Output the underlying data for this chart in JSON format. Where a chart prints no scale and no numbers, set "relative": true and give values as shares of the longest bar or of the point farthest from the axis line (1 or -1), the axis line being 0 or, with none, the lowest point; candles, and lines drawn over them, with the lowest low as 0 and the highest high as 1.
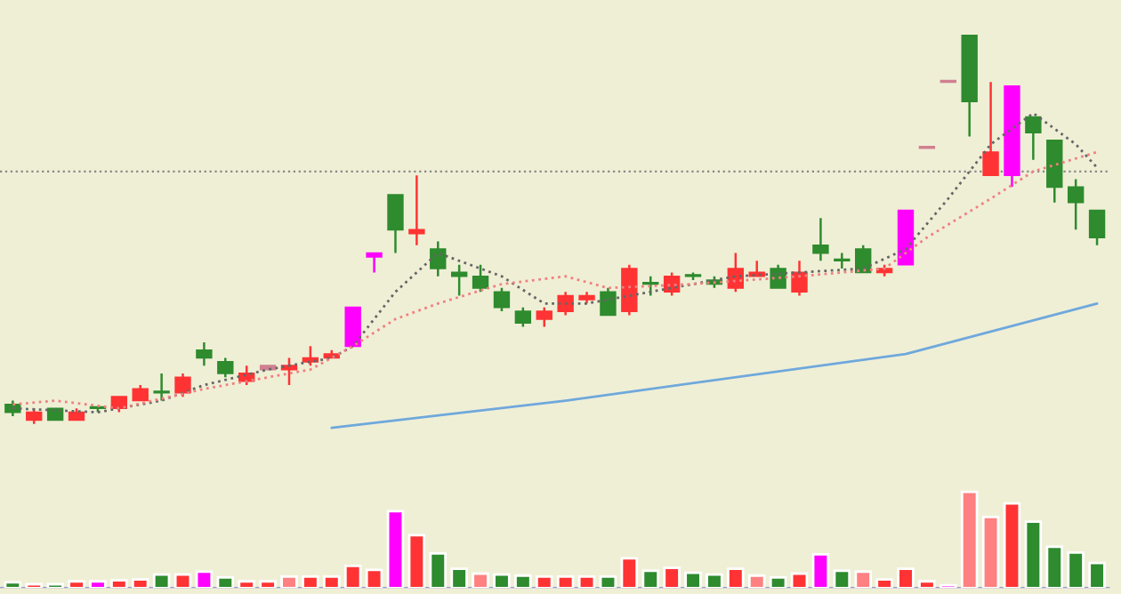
{
  "chart_data": [
    {
      "type": "candlestick",
      "relative": true,
      "categories": [
        null,
        null,
        null,
        null,
        null,
        null,
        null,
        null,
        null,
        null,
        null,
        null,
        null,
        null,
        null,
        null,
        null,
        null,
        null,
        null,
        null,
        null,
        null,
        null,
        null,
        null,
        null,
        null,
        null,
        null,
        null,
        null,
        null,
        null,
        null,
        null,
        null,
        null,
        null,
        null,
        null,
        null,
        null,
        null,
        null,
        null,
        null,
        null,
        null,
        null,
        null,
        null
      ],
      "ohlc": [
        [
          0.05,
          0.06,
          0.02,
          0.03
        ],
        [
          0.01,
          0.04,
          0,
          0.03
        ],
        [
          0.04,
          0.04,
          0.01,
          0.01
        ],
        [
          0.01,
          0.04,
          0.01,
          0.03
        ],
        [
          0.04,
          0.04,
          0.03,
          0.04
        ],
        [
          0.04,
          0.07,
          0.03,
          0.07
        ],
        [
          0.06,
          0.1,
          0.06,
          0.09
        ],
        [
          0.08,
          0.13,
          0.06,
          0.08
        ],
        [
          0.08,
          0.13,
          0.07,
          0.12
        ],
        [
          0.19,
          0.21,
          0.15,
          0.17
        ],
        [
          0.16,
          0.17,
          0.12,
          0.13
        ],
        [
          0.11,
          0.15,
          0.1,
          0.13
        ],
        [
          0.14,
          0.15,
          0.14,
          0.15
        ],
        [
          0.14,
          0.17,
          0.1,
          0.15
        ],
        [
          0.16,
          0.2,
          0.15,
          0.17
        ],
        [
          0.17,
          0.19,
          0.17,
          0.18
        ],
        [
          0.2,
          0.3,
          0.2,
          0.3
        ],
        [
          0.43,
          0.44,
          0.39,
          0.44
        ],
        [
          0.59,
          0.59,
          0.44,
          0.5
        ],
        [
          0.49,
          0.64,
          0.46,
          0.5
        ],
        [
          0.45,
          0.47,
          0.38,
          0.4
        ],
        [
          0.39,
          0.41,
          0.33,
          0.38
        ],
        [
          0.38,
          0.41,
          0.34,
          0.35
        ],
        [
          0.34,
          0.35,
          0.29,
          0.3
        ],
        [
          0.29,
          0.3,
          0.25,
          0.26
        ],
        [
          0.27,
          0.3,
          0.25,
          0.29
        ],
        [
          0.29,
          0.34,
          0.28,
          0.33
        ],
        [
          0.32,
          0.34,
          0.31,
          0.33
        ],
        [
          0.34,
          0.35,
          0.28,
          0.28
        ],
        [
          0.29,
          0.41,
          0.28,
          0.4
        ],
        [
          0.36,
          0.38,
          0.33,
          0.36
        ],
        [
          0.34,
          0.39,
          0.33,
          0.38
        ],
        [
          0.38,
          0.39,
          0.37,
          0.38
        ],
        [
          0.37,
          0.38,
          0.35,
          0.36
        ],
        [
          0.35,
          0.44,
          0.34,
          0.4
        ],
        [
          0.38,
          0.42,
          0.38,
          0.39
        ],
        [
          0.4,
          0.41,
          0.35,
          0.35
        ],
        [
          0.34,
          0.42,
          0.33,
          0.39
        ],
        [
          0.46,
          0.53,
          0.42,
          0.44
        ],
        [
          0.42,
          0.44,
          0.4,
          0.42
        ],
        [
          0.45,
          0.46,
          0.39,
          0.39
        ],
        [
          0.39,
          0.41,
          0.38,
          0.4
        ],
        [
          0.41,
          0.55,
          0.41,
          0.55
        ],
        [
          0.71,
          0.71,
          0.71,
          0.71
        ],
        [
          0.88,
          0.88,
          0.88,
          0.88
        ],
        [
          1,
          1,
          0.74,
          0.83
        ],
        [
          0.64,
          0.88,
          0.64,
          0.7
        ],
        [
          0.64,
          0.87,
          0.61,
          0.87
        ],
        [
          0.79,
          0.79,
          0.68,
          0.75
        ],
        [
          0.73,
          0.73,
          0.57,
          0.61
        ],
        [
          0.61,
          0.63,
          0.5,
          0.57
        ],
        [
          0.55,
          0.55,
          0.46,
          0.48
        ]
      ],
      "colors": [
        "#2e8b2e",
        "#ff3333",
        "#2e8b2e",
        "#ff3333",
        "#2e8b2e",
        "#ff3333",
        "#ff3333",
        "#2e8b2e",
        "#ff3333",
        "#2e8b2e",
        "#2e8b2e",
        "#ff3333",
        "#d08090",
        "#ff3333",
        "#ff3333",
        "#ff3333",
        "#ff00ff",
        "#ff00ff",
        "#2e8b2e",
        "#ff3333",
        "#2e8b2e",
        "#2e8b2e",
        "#2e8b2e",
        "#2e8b2e",
        "#2e8b2e",
        "#ff3333",
        "#ff3333",
        "#ff3333",
        "#2e8b2e",
        "#ff3333",
        "#2e8b2e",
        "#ff3333",
        "#2e8b2e",
        "#2e8b2e",
        "#ff3333",
        "#ff3333",
        "#2e8b2e",
        "#ff3333",
        "#2e8b2e",
        "#2e8b2e",
        "#2e8b2e",
        "#ff3333",
        "#ff00ff",
        "#d08090",
        "#d08090",
        "#2e8b2e",
        "#ff3333",
        "#ff00ff",
        "#2e8b2e",
        "#2e8b2e",
        "#2e8b2e",
        "#2e8b2e"
      ],
      "series": [
        {
          "type": "line",
          "color": "#666666",
          "line_style": "dotted",
          "values": [
            0.04,
            null,
            null,
            null,
            0.03,
            null,
            null,
            0.06,
            null,
            0.1,
            null,
            null,
            0.14,
            null,
            null,
            0.17,
            0.2,
            null,
            0.34,
            null,
            0.44,
            null,
            null,
            0.38,
            null,
            0.31,
            null,
            0.31,
            null,
            0.33,
            null,
            null,
            null,
            null,
            0.38,
            null,
            null,
            null,
            null,
            null,
            0.4,
            null,
            0.45,
            null,
            0.58,
            null,
            0.72,
            null,
            0.8,
            null,
            0.72,
            0.66
          ]
        },
        {
          "type": "line",
          "color": "#f08080",
          "line_style": "dotted",
          "values": [
            0.05,
            null,
            0.06,
            null,
            null,
            0.04,
            null,
            null,
            null,
            0.09,
            null,
            null,
            null,
            null,
            0.14,
            null,
            0.2,
            null,
            0.27,
            null,
            0.31,
            null,
            null,
            0.36,
            null,
            null,
            0.38,
            null,
            0.35,
            null,
            null,
            null,
            0.36,
            null,
            null,
            null,
            null,
            0.38,
            null,
            null,
            null,
            0.4,
            null,
            0.48,
            null,
            null,
            0.58,
            null,
            0.65,
            null,
            null,
            0.7
          ]
        },
        {
          "type": "line",
          "color": "#6fa8dc",
          "line_style": "solid",
          "values": [
            null,
            null,
            null,
            null,
            null,
            null,
            null,
            null,
            null,
            null,
            null,
            null,
            null,
            null,
            null,
            -0.01,
            null,
            null,
            null,
            null,
            null,
            null,
            null,
            null,
            null,
            null,
            0.06,
            null,
            null,
            null,
            null,
            null,
            null,
            null,
            null,
            null,
            null,
            null,
            null,
            null,
            null,
            null,
            0.18,
            null,
            null,
            null,
            null,
            null,
            null,
            null,
            null,
            0.31
          ]
        }
      ],
      "ref_lines": [
        {
          "axis": "y",
          "value": 0.65,
          "color": "#888888",
          "line_style": "dotted"
        }
      ]
    },
    {
      "type": "bar",
      "relative": true,
      "categories": [
        null,
        null,
        null,
        null,
        null,
        null,
        null,
        null,
        null,
        null,
        null,
        null,
        null,
        null,
        null,
        null,
        null,
        null,
        null,
        null,
        null,
        null,
        null,
        null,
        null,
        null,
        null,
        null,
        null,
        null,
        null,
        null,
        null,
        null,
        null,
        null,
        null,
        null,
        null,
        null,
        null,
        null,
        null,
        null,
        null,
        null,
        null,
        null,
        null,
        null,
        null,
        null
      ],
      "values": [
        0.06,
        0.04,
        0.04,
        0.07,
        0.07,
        0.08,
        0.09,
        0.14,
        0.14,
        0.17,
        0.11,
        0.07,
        0.07,
        0.12,
        0.12,
        0.12,
        0.23,
        0.19,
        0.8,
        0.55,
        0.36,
        0.2,
        0.15,
        0.14,
        0.13,
        0.12,
        0.12,
        0.12,
        0.12,
        0.31,
        0.18,
        0.21,
        0.16,
        0.14,
        0.2,
        0.13,
        0.11,
        0.15,
        0.35,
        0.18,
        0.17,
        0.09,
        0.2,
        0.07,
        0.03,
        1,
        0.74,
        0.88,
        0.69,
        0.43,
        0.37,
        0.26
      ],
      "colors": [
        "#2e8b2e",
        "#ff3333",
        "#2e8b2e",
        "#ff3333",
        "#ff00ff",
        "#ff3333",
        "#ff3333",
        "#2e8b2e",
        "#ff3333",
        "#ff00ff",
        "#2e8b2e",
        "#ff3333",
        "#ff3333",
        "#ff8080",
        "#ff3333",
        "#ff3333",
        "#ff3333",
        "#ff3333",
        "#ff00ff",
        "#ff3333",
        "#2e8b2e",
        "#2e8b2e",
        "#ff8080",
        "#2e8b2e",
        "#2e8b2e",
        "#ff3333",
        "#ff3333",
        "#ff3333",
        "#2e8b2e",
        "#ff3333",
        "#2e8b2e",
        "#ff3333",
        "#2e8b2e",
        "#2e8b2e",
        "#ff3333",
        "#ff8080",
        "#2e8b2e",
        "#ff3333",
        "#ff00ff",
        "#2e8b2e",
        "#ff8080",
        "#ff3333",
        "#ff3333",
        "#ff3333",
        "#ff00ff",
        "#ff8080",
        "#ff8080",
        "#ff3333",
        "#2e8b2e",
        "#2e8b2e",
        "#2e8b2e",
        "#2e8b2e"
      ]
    }
  ]
}
